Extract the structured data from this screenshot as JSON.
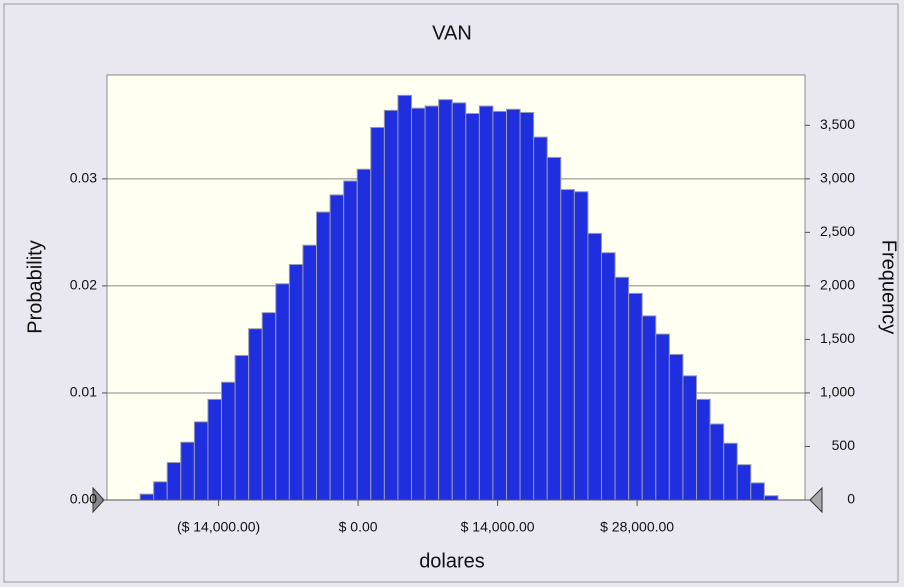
{
  "chart_data": {
    "type": "histogram",
    "title": "VAN",
    "xlabel": "dolares",
    "ylabel": "Probability",
    "y2label": "Frequency",
    "bins": [
      -21880,
      -20518,
      -19156,
      -17794,
      -16432,
      -15070,
      -13708,
      -12346,
      -10984,
      -9622,
      -8260,
      -6898,
      -5536,
      -4174,
      -2812,
      -1450,
      -88,
      1274,
      2636,
      3998,
      5360,
      6722,
      8084,
      9446,
      10808,
      12170,
      13532,
      14894,
      16256,
      17618,
      18980,
      20342,
      21704,
      23066,
      24428,
      25790,
      27152,
      28514,
      29876,
      31238,
      32600,
      33962,
      35324,
      36686,
      38048,
      39410,
      40772,
      42134
    ],
    "values": [
      55,
      170,
      350,
      540,
      730,
      940,
      1100,
      1350,
      1600,
      1750,
      2020,
      2200,
      2380,
      2690,
      2850,
      2980,
      3090,
      3480,
      3640,
      3780,
      3660,
      3680,
      3740,
      3710,
      3610,
      3680,
      3630,
      3650,
      3620,
      3390,
      3200,
      2900,
      2880,
      2490,
      2310,
      2080,
      1930,
      1720,
      1550,
      1360,
      1160,
      940,
      710,
      530,
      330,
      160,
      40
    ],
    "color": "#1f2fe0",
    "axis": "y2",
    "xlim": [
      -25200,
      44850
    ],
    "xticks": [
      {
        "value": -14000,
        "label": "($ 14,000.00)"
      },
      {
        "value": 0,
        "label": "$ 0.00"
      },
      {
        "value": 14000,
        "label": "$ 14,000.00"
      },
      {
        "value": 28000,
        "label": "$ 28,000.00"
      }
    ],
    "ylim": [
      0,
      0.0397
    ],
    "yticks": [
      {
        "value": 0,
        "label": "0.00"
      },
      0.01,
      0.02,
      0.03
    ],
    "y2lim": [
      0,
      3970
    ],
    "y2ticks": [
      0,
      500,
      {
        "value": 1000,
        "label": "1,000"
      },
      {
        "value": 1500,
        "label": "1,500"
      },
      {
        "value": 2000,
        "label": "2,000"
      },
      {
        "value": 2500,
        "label": "2,500"
      },
      {
        "value": 3000,
        "label": "3,000"
      },
      {
        "value": 3500,
        "label": "3,500"
      }
    ],
    "grid": true
  }
}
